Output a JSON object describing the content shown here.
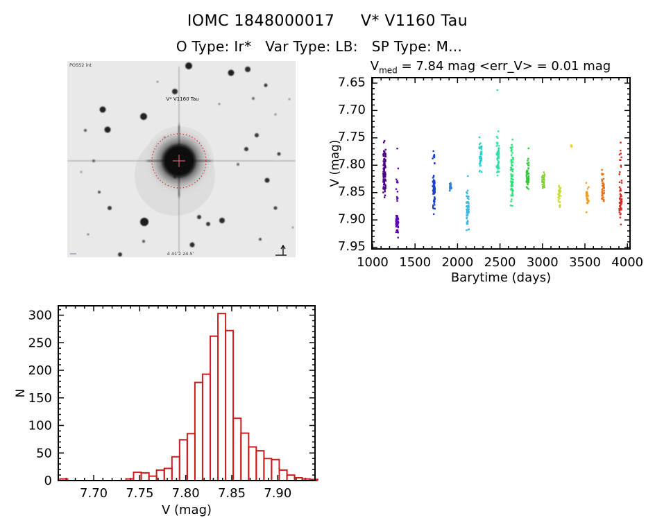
{
  "header": {
    "title": "IOMC 1848000017     V* V1160 Tau",
    "subtitle": "O Type: Ir*   Var Type: LB:   SP Type: M..."
  },
  "finder": {
    "survey_label": "POSS2 int",
    "target_label": "V* V1160 Tau",
    "bottom_label": "4 41'2 24.5'",
    "bg": "#e9e9e9",
    "accent": "#d83030",
    "label_color": "#223366",
    "stars": [
      [
        175,
        7,
        5,
        0.95
      ],
      [
        236,
        17,
        4.5,
        0.95
      ],
      [
        260,
        12,
        4,
        0.9
      ],
      [
        286,
        35,
        2.5,
        0.85
      ],
      [
        155,
        44,
        4,
        0.9
      ],
      [
        51,
        70,
        4.5,
        0.95
      ],
      [
        110,
        80,
        5,
        0.95
      ],
      [
        58,
        99,
        4.5,
        0.95
      ],
      [
        26,
        100,
        2,
        0.7
      ],
      [
        273,
        107,
        3,
        0.85
      ],
      [
        258,
        127,
        3,
        0.85
      ],
      [
        305,
        134,
        2.5,
        0.8
      ],
      [
        288,
        172,
        3.5,
        0.9
      ],
      [
        46,
        189,
        2,
        0.7
      ],
      [
        61,
        212,
        3,
        0.85
      ],
      [
        111,
        232,
        6,
        0.97
      ],
      [
        223,
        230,
        4,
        0.9
      ],
      [
        190,
        225,
        3,
        0.85
      ],
      [
        203,
        235,
        3,
        0.85
      ],
      [
        300,
        212,
        2.5,
        0.8
      ],
      [
        110,
        260,
        2,
        0.7
      ],
      [
        180,
        265,
        3.5,
        0.9
      ],
      [
        76,
        279,
        3,
        0.85
      ],
      [
        278,
        257,
        2,
        0.7
      ],
      [
        38,
        144,
        2,
        0.6
      ],
      [
        219,
        62,
        1.5,
        0.5
      ],
      [
        268,
        54,
        2,
        0.6
      ],
      [
        155,
        167,
        2.5,
        0.75
      ],
      [
        246,
        149,
        2,
        0.6
      ],
      [
        300,
        77,
        1.5,
        0.5
      ],
      [
        30,
        250,
        1.5,
        0.5
      ],
      [
        130,
        30,
        1.5,
        0.4
      ],
      [
        320,
        55,
        1.5,
        0.4
      ],
      [
        20,
        160,
        1.5,
        0.4
      ],
      [
        325,
        240,
        1.5,
        0.4
      ],
      [
        140,
        110,
        1.5,
        0.4
      ]
    ]
  },
  "chart_data": [
    {
      "id": "lightcurve",
      "type": "scatter",
      "title_v": "V",
      "title_sub": "med",
      "title_rest": " = 7.84 mag <err_V> = 0.01 mag",
      "xlabel": "Barytime (days)",
      "ylabel": "V (mag)",
      "xlim": [
        992,
        4031
      ],
      "ylim_top": 7.642,
      "ylim_bottom": 7.955,
      "x_major_ticks": [
        1000,
        1500,
        2000,
        2500,
        3000,
        3500,
        4000
      ],
      "x_minor_step": 100,
      "y_major_ticks": [
        7.65,
        7.7,
        7.75,
        7.8,
        7.85,
        7.9,
        7.95
      ],
      "y_minor_step": 0.01,
      "y_axis_inverted": true,
      "grid": false,
      "clusters": [
        {
          "t": 1140,
          "color": "#4A0082",
          "segments": [
            [
              7.756,
              7.761,
              2,
              "u"
            ],
            [
              7.77,
              7.868,
              85,
              "t"
            ]
          ]
        },
        {
          "t": 1290,
          "color": "#5B00B8",
          "segments": [
            [
              7.769,
              7.772,
              1,
              "u"
            ],
            [
              7.806,
              7.809,
              1,
              "u"
            ],
            [
              7.826,
              7.856,
              7,
              "u"
            ],
            [
              7.86,
              7.872,
              4,
              "u"
            ],
            [
              7.888,
              7.929,
              45,
              "t"
            ],
            [
              7.933,
              7.937,
              1,
              "u"
            ]
          ]
        },
        {
          "t": 1720,
          "color": "#1A3FC8",
          "segments": [
            [
              7.774,
              7.803,
              8,
              "u"
            ],
            [
              7.806,
              7.897,
              55,
              "t"
            ]
          ]
        },
        {
          "t": 1920,
          "color": "#2E7ED8",
          "segments": [
            [
              7.833,
              7.854,
              14,
              "t"
            ]
          ]
        },
        {
          "t": 2120,
          "color": "#3FB6DC",
          "segments": [
            [
              7.821,
              7.824,
              1,
              "u"
            ],
            [
              7.839,
              7.929,
              50,
              "t"
            ]
          ]
        },
        {
          "t": 2270,
          "color": "#2BD0CB",
          "segments": [
            [
              7.739,
              7.82,
              40,
              "t"
            ]
          ]
        },
        {
          "t": 2475,
          "color": "#2CDFA7",
          "segments": [
            [
              7.663,
              7.666,
              1,
              "u"
            ],
            [
              7.737,
              7.828,
              60,
              "t"
            ]
          ]
        },
        {
          "t": 2640,
          "color": "#2EE078",
          "segments": [
            [
              7.748,
              7.891,
              70,
              "t"
            ]
          ]
        },
        {
          "t": 2825,
          "color": "#32C83C",
          "segments": [
            [
              7.77,
              7.773,
              1,
              "u"
            ],
            [
              7.783,
              7.854,
              45,
              "t"
            ]
          ]
        },
        {
          "t": 3010,
          "color": "#7ED02E",
          "segments": [
            [
              7.807,
              7.859,
              28,
              "t"
            ]
          ]
        },
        {
          "t": 3200,
          "color": "#C9DC28",
          "segments": [
            [
              7.832,
              7.884,
              28,
              "t"
            ]
          ]
        },
        {
          "t": 3340,
          "color": "#F0D020",
          "segments": [
            [
              7.763,
              7.77,
              4,
              "u"
            ]
          ]
        },
        {
          "t": 3530,
          "color": "#F0A01E",
          "segments": [
            [
              7.83,
              7.892,
              25,
              "t"
            ]
          ]
        },
        {
          "t": 3715,
          "color": "#E86E16",
          "segments": [
            [
              7.807,
              7.873,
              40,
              "t"
            ]
          ]
        },
        {
          "t": 3920,
          "color": "#D82820",
          "segments": [
            [
              7.76,
              7.838,
              14,
              "u"
            ],
            [
              7.838,
              7.903,
              45,
              "t"
            ],
            [
              7.909,
              7.914,
              1,
              "u"
            ]
          ]
        }
      ]
    },
    {
      "id": "histogram",
      "type": "bar",
      "color": "#CC1C1C",
      "xlabel": "V (mag)",
      "ylabel": "N",
      "xlim": [
        7.6615,
        7.9405
      ],
      "ylim": [
        0,
        317
      ],
      "x_major_ticks": [
        7.7,
        7.75,
        7.8,
        7.85,
        7.9
      ],
      "x_minor_step": 0.01,
      "y_major_ticks": [
        0,
        50,
        100,
        150,
        200,
        250,
        300
      ],
      "y_minor_step": 10,
      "grid": false,
      "bin_width": 0.00833,
      "baseline": [
        7.6633,
        7.9433
      ],
      "bars": [
        [
          7.6633,
          3
        ],
        [
          7.735,
          3
        ],
        [
          7.7433,
          15
        ],
        [
          7.7517,
          14
        ],
        [
          7.76,
          8
        ],
        [
          7.7683,
          19
        ],
        [
          7.7767,
          22
        ],
        [
          7.785,
          43
        ],
        [
          7.7933,
          74
        ],
        [
          7.8017,
          85
        ],
        [
          7.81,
          178
        ],
        [
          7.8183,
          193
        ],
        [
          7.8267,
          262
        ],
        [
          7.835,
          303
        ],
        [
          7.8433,
          272
        ],
        [
          7.8517,
          113
        ],
        [
          7.86,
          86
        ],
        [
          7.8683,
          61
        ],
        [
          7.8767,
          54
        ],
        [
          7.885,
          40
        ],
        [
          7.8933,
          38
        ],
        [
          7.9017,
          19
        ],
        [
          7.91,
          10
        ],
        [
          7.9183,
          5
        ],
        [
          7.9267,
          3
        ],
        [
          7.935,
          2
        ]
      ]
    }
  ]
}
